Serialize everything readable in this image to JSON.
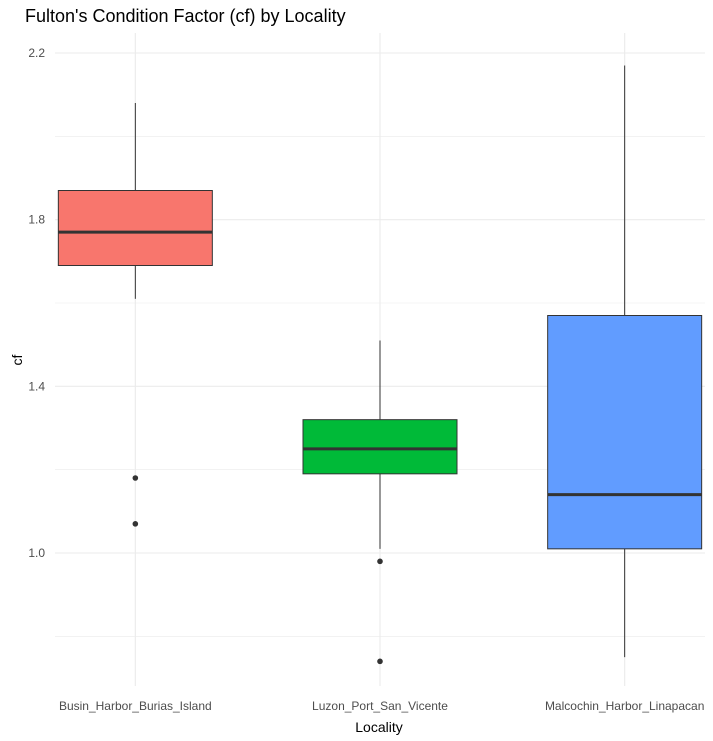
{
  "chart_data": {
    "type": "box",
    "title": "Fulton's Condition Factor (cf) by Locality",
    "xlabel": "Locality",
    "ylabel": "cf",
    "ylim": [
      0.72,
      2.25
    ],
    "yticks": [
      1.0,
      1.4,
      1.8,
      2.2
    ],
    "ytick_labels": [
      "1.0",
      "1.4",
      "1.8",
      "2.2"
    ],
    "grid": true,
    "legend": "none",
    "categories": [
      "Busin_Harbor_Burias_Island",
      "Luzon_Port_San_Vicente",
      "Malcochin_Harbor_Linapacan"
    ],
    "boxes": [
      {
        "category": "Busin_Harbor_Burias_Island",
        "whisker_low": 1.61,
        "q1": 1.69,
        "median": 1.77,
        "q3": 1.87,
        "whisker_high": 2.08,
        "outliers": [
          1.18,
          1.07
        ],
        "color": "#F8766D"
      },
      {
        "category": "Luzon_Port_San_Vicente",
        "whisker_low": 1.01,
        "q1": 1.19,
        "median": 1.25,
        "q3": 1.32,
        "whisker_high": 1.51,
        "outliers": [
          0.98,
          0.74
        ],
        "color": "#00BA38"
      },
      {
        "category": "Malcochin_Harbor_Linapacan",
        "whisker_low": 0.75,
        "q1": 1.01,
        "median": 1.14,
        "q3": 1.57,
        "whisker_high": 2.17,
        "outliers": [],
        "color": "#619CFF"
      }
    ]
  }
}
